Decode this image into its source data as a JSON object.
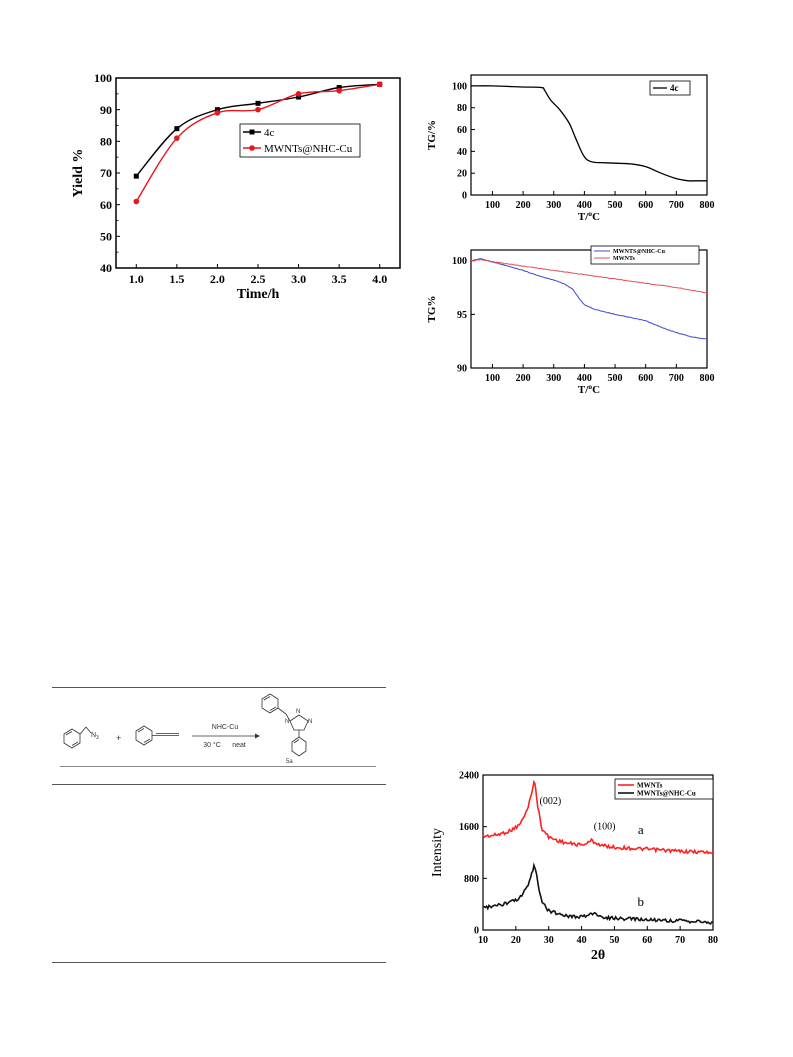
{
  "chart_data": [
    {
      "type": "line",
      "xlabel": "Time/h",
      "ylabel": "Yield %",
      "xlim": [
        0.75,
        4.25
      ],
      "ylim": [
        40,
        100
      ],
      "xticks": [
        "1.0",
        "1.5",
        "2.0",
        "2.5",
        "3.0",
        "3.5",
        "4.0"
      ],
      "yticks": [
        "40",
        "50",
        "60",
        "70",
        "80",
        "90",
        "100"
      ],
      "legend": "top-right",
      "series": [
        {
          "name": "4c",
          "color": "#000000",
          "marker": "square",
          "x": [
            1.0,
            1.5,
            2.0,
            2.5,
            3.0,
            3.5,
            4.0
          ],
          "values": [
            69,
            84,
            90,
            92,
            94,
            97,
            98
          ]
        },
        {
          "name": "MWNTs@NHC-Cu",
          "color": "#e8151b",
          "marker": "circle",
          "x": [
            1.0,
            1.5,
            2.0,
            2.5,
            3.0,
            3.5,
            4.0
          ],
          "values": [
            61,
            81,
            89,
            90,
            95,
            96,
            98
          ]
        }
      ]
    },
    {
      "type": "line",
      "xlabel": "T/oC",
      "ylabel": "TG/%",
      "xlim": [
        30,
        800
      ],
      "ylim": [
        0,
        110
      ],
      "xticks": [
        "100",
        "200",
        "300",
        "400",
        "500",
        "600",
        "700",
        "800"
      ],
      "yticks": [
        "0",
        "20",
        "40",
        "60",
        "80",
        "100"
      ],
      "legend": "top-right",
      "series": [
        {
          "name": "4c",
          "color": "#000000",
          "x": [
            30,
            100,
            200,
            260,
            270,
            290,
            320,
            350,
            370,
            390,
            400,
            410,
            430,
            470,
            550,
            600,
            650,
            700,
            740,
            760,
            800
          ],
          "values": [
            100,
            100,
            99,
            98.5,
            96,
            87,
            78,
            66,
            53,
            40,
            35,
            32,
            30,
            29.5,
            28.5,
            26,
            20,
            15,
            13,
            13,
            13
          ]
        }
      ]
    },
    {
      "type": "line",
      "xlabel": "T/oC",
      "ylabel": "TG%",
      "xlim": [
        30,
        800
      ],
      "ylim": [
        90,
        101
      ],
      "xticks": [
        "100",
        "200",
        "300",
        "400",
        "500",
        "600",
        "700",
        "800"
      ],
      "yticks": [
        "90",
        "95",
        "100"
      ],
      "legend": "top-right",
      "series": [
        {
          "name": "MWNTS@NHC-Cu",
          "color": "#3f48cc",
          "x": [
            30,
            60,
            100,
            150,
            200,
            250,
            300,
            330,
            360,
            380,
            400,
            430,
            500,
            550,
            600,
            650,
            700,
            750,
            800
          ],
          "values": [
            100,
            100.2,
            99.9,
            99.5,
            99.1,
            98.6,
            98.2,
            97.9,
            97.4,
            96.6,
            95.9,
            95.5,
            95.0,
            94.7,
            94.4,
            93.8,
            93.3,
            92.9,
            92.7
          ]
        },
        {
          "name": "MWNTs",
          "color": "#e05050",
          "x": [
            30,
            60,
            100,
            200,
            300,
            400,
            500,
            600,
            700,
            800
          ],
          "values": [
            100,
            100.1,
            99.9,
            99.5,
            99.1,
            98.7,
            98.3,
            97.9,
            97.5,
            97.0
          ]
        }
      ]
    },
    {
      "type": "line",
      "xlabel": "2θ",
      "ylabel": "Intensity",
      "xlim": [
        10,
        80
      ],
      "ylim": [
        0,
        2400
      ],
      "xticks": [
        "10",
        "20",
        "30",
        "40",
        "50",
        "60",
        "70",
        "80"
      ],
      "yticks": [
        "0",
        "800",
        "1600",
        "2400"
      ],
      "legend": "top-right",
      "annotations": [
        "(002)",
        "(100)",
        "a",
        "b"
      ],
      "series": [
        {
          "name": "MWNTs",
          "color": "#ff2020",
          "x": [
            10,
            14,
            18,
            21,
            23,
            24.5,
            25.5,
            26,
            26.7,
            28,
            30,
            33,
            36,
            40,
            42,
            43,
            44,
            46,
            50,
            60,
            70,
            80
          ],
          "values": [
            1450,
            1470,
            1530,
            1620,
            1800,
            2050,
            2300,
            2200,
            1900,
            1560,
            1440,
            1380,
            1340,
            1320,
            1350,
            1390,
            1360,
            1310,
            1280,
            1250,
            1220,
            1200
          ]
        },
        {
          "name": "MWNTs@NHC-Cu",
          "color": "#111111",
          "x": [
            10,
            14,
            18,
            21,
            23,
            24.5,
            25.5,
            26,
            26.7,
            28,
            30,
            33,
            36,
            40,
            42,
            43,
            44,
            46,
            50,
            60,
            70,
            80
          ],
          "values": [
            350,
            370,
            420,
            480,
            620,
            800,
            1000,
            950,
            720,
            420,
            300,
            250,
            220,
            200,
            230,
            270,
            240,
            200,
            180,
            160,
            140,
            120
          ]
        }
      ]
    }
  ],
  "scheme": {
    "catalyst": "NHC-Cu",
    "temperature": "30 °C",
    "condition": "neat",
    "product": "5a"
  }
}
